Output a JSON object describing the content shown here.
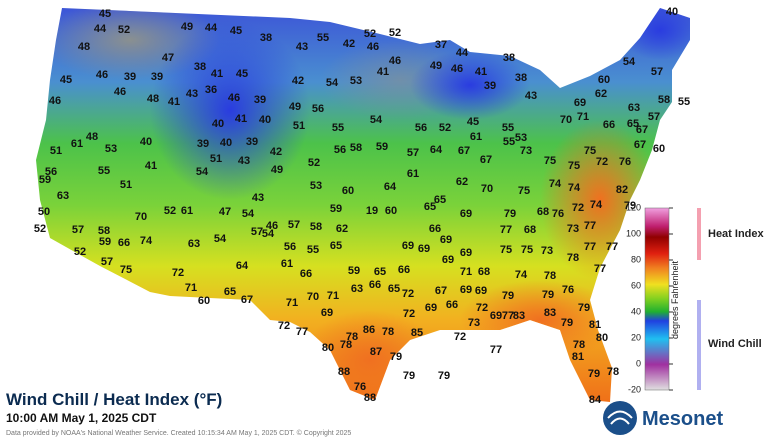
{
  "header": {
    "title": "Wind Chill / Heat Index (°F)",
    "subtitle": "10:00 AM May 1, 2025 CDT",
    "credit": "Data provided by NOAA's National Weather Service. Created 10:15:34 AM May 1, 2025 CDT. © Copyright 2025",
    "logo": "Mesonet"
  },
  "colorbar": {
    "ticks": [
      120,
      100,
      80,
      60,
      40,
      20,
      0,
      -20
    ],
    "range": [
      -20,
      120
    ],
    "label": "degrees Fahrenheit",
    "heat_label": "Heat Index",
    "chill_label": "Wind Chill"
  },
  "stations": [
    45,
    52,
    49,
    44,
    45,
    38,
    43,
    55,
    42,
    46,
    52,
    52,
    37,
    44,
    38,
    40,
    44,
    48,
    45,
    46,
    39,
    39,
    47,
    38,
    41,
    45,
    36,
    42,
    54,
    53,
    46,
    41,
    49,
    46,
    41,
    39,
    38,
    43,
    46,
    46,
    48,
    41,
    43,
    46,
    39,
    40,
    41,
    40,
    51,
    49,
    56,
    55,
    54,
    56,
    52,
    45,
    55,
    53,
    54,
    60,
    57,
    58,
    55,
    62,
    63,
    69,
    70,
    71,
    66,
    65,
    57,
    48,
    51,
    61,
    53,
    40,
    39,
    40,
    39,
    42,
    56,
    58,
    59,
    57,
    61,
    67,
    73,
    75,
    75,
    75,
    72,
    76,
    67,
    60,
    67,
    55,
    56,
    55,
    51,
    41,
    54,
    51,
    43,
    49,
    52,
    53,
    60,
    64,
    61,
    64,
    67,
    62,
    70,
    65,
    74,
    74,
    82,
    79,
    74,
    72,
    76,
    68,
    79,
    75,
    59,
    63,
    50,
    52,
    52,
    57,
    58,
    66,
    74,
    70,
    52,
    61,
    47,
    57,
    43,
    54,
    46,
    57,
    58,
    59,
    19,
    60,
    65,
    69,
    57,
    59,
    63,
    54,
    75,
    72,
    71,
    60,
    65,
    67,
    64,
    61,
    56,
    55,
    65,
    62,
    66,
    59,
    65,
    66,
    69,
    69,
    66,
    69,
    71,
    68,
    69,
    77,
    75,
    75,
    68,
    73,
    77,
    77,
    77,
    73,
    74,
    78,
    78,
    77,
    71,
    70,
    71,
    63,
    66,
    65,
    72,
    67,
    69,
    79,
    79,
    76,
    79,
    72,
    77,
    69,
    78,
    86,
    78,
    72,
    69,
    66,
    69,
    72,
    73,
    72,
    69,
    77,
    83,
    83,
    79,
    81,
    80,
    80,
    78,
    87,
    79,
    85,
    77,
    78,
    81,
    88,
    76,
    79,
    79,
    79,
    78,
    84,
    88,
    54,
    69
  ]
}
